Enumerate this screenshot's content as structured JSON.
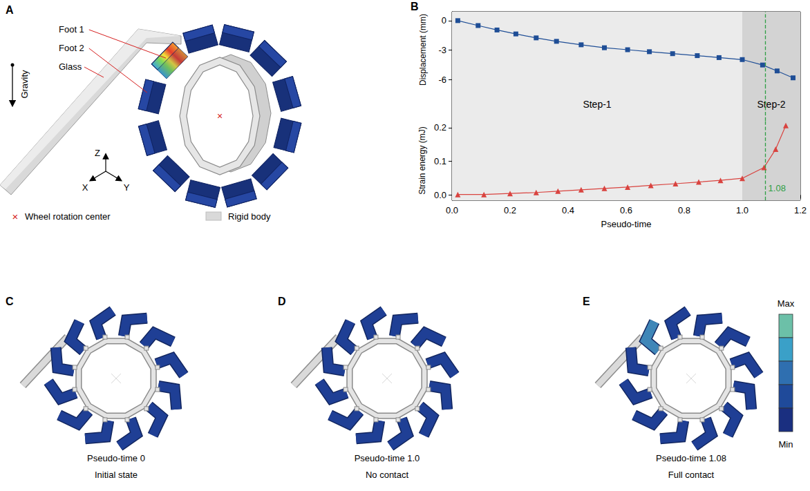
{
  "chart_data": [
    {
      "type": "line",
      "ylabel": "Displacement (mm)",
      "x": [
        0.02,
        0.09,
        0.155,
        0.22,
        0.29,
        0.36,
        0.445,
        0.525,
        0.605,
        0.68,
        0.76,
        0.845,
        0.92,
        1.0,
        1.07,
        1.12,
        1.175
      ],
      "values": [
        0,
        -0.5,
        -0.95,
        -1.35,
        -1.75,
        -2.1,
        -2.45,
        -2.75,
        -2.95,
        -3.15,
        -3.35,
        -3.55,
        -3.75,
        -3.95,
        -4.5,
        -5.1,
        -5.8
      ],
      "color": "#1f4e96",
      "marker": "square",
      "xlim": [
        0,
        1.2
      ],
      "ylim": [
        -6.8,
        0.9
      ],
      "yticks": [
        0,
        -3,
        -6
      ],
      "tick_labels": "y",
      "grid": false
    },
    {
      "type": "line",
      "ylabel": "Strain energy (mJ)",
      "xlabel": "Pseudo-time",
      "x": [
        0.02,
        0.11,
        0.2,
        0.29,
        0.365,
        0.445,
        0.525,
        0.605,
        0.685,
        0.77,
        0.85,
        0.925,
        1.0,
        1.075,
        1.115,
        1.15
      ],
      "values": [
        0.002,
        0.002,
        0.005,
        0.008,
        0.012,
        0.016,
        0.02,
        0.024,
        0.029,
        0.034,
        0.039,
        0.044,
        0.05,
        0.082,
        0.136,
        0.206
      ],
      "color": "#d9433f",
      "marker": "triangle",
      "xlim": [
        0,
        1.2
      ],
      "xticks": [
        {
          "value": 0,
          "label": "0.0"
        },
        {
          "value": 0.2,
          "label": "0.2"
        },
        {
          "value": 0.4,
          "label": "0.4"
        },
        {
          "value": 0.6,
          "label": "0.6"
        },
        {
          "value": 0.8,
          "label": "0.8"
        },
        {
          "value": 1.0,
          "label": "1.0"
        },
        {
          "value": 1.2,
          "label": "1.2"
        }
      ],
      "ylim": [
        -0.015,
        0.22
      ],
      "yticks": [
        {
          "value": 0,
          "label": "0.0"
        },
        {
          "value": 0.1,
          "label": "0.1"
        },
        {
          "value": 0.2,
          "label": "0.2"
        }
      ],
      "annotations": [
        {
          "x": 1.08,
          "label": "1.08",
          "color": "#2e9e44"
        }
      ],
      "grid": false
    }
  ],
  "steps": [
    {
      "label": "Step-1",
      "start": 0,
      "end": 1.0,
      "color": "#ebebeb"
    },
    {
      "label": "Step-2",
      "start": 1.0,
      "end": 1.2,
      "color": "#d3d3d3"
    }
  ],
  "panels": {
    "A": {
      "letter": "A",
      "callouts": [
        "Foot 1",
        "Foot 2",
        "Glass"
      ],
      "gravity": "Gravity",
      "axes": [
        "X",
        "Y",
        "Z"
      ],
      "legend": [
        {
          "symbol": "×",
          "label": "Wheel rotation center"
        },
        {
          "label": "Rigid body"
        }
      ]
    },
    "B": {
      "letter": "B"
    },
    "C": {
      "letter": "C",
      "time_label": "Pseudo-time",
      "time": "0",
      "state": "Initial state"
    },
    "D": {
      "letter": "D",
      "time_label": "Pseudo-time",
      "time": "1.0",
      "state": "No contact"
    },
    "E": {
      "letter": "E",
      "time_label": "Pseudo-time",
      "time": "1.08",
      "state": "Full contact"
    },
    "colorbar": {
      "max": "Max",
      "min": "Min"
    }
  }
}
